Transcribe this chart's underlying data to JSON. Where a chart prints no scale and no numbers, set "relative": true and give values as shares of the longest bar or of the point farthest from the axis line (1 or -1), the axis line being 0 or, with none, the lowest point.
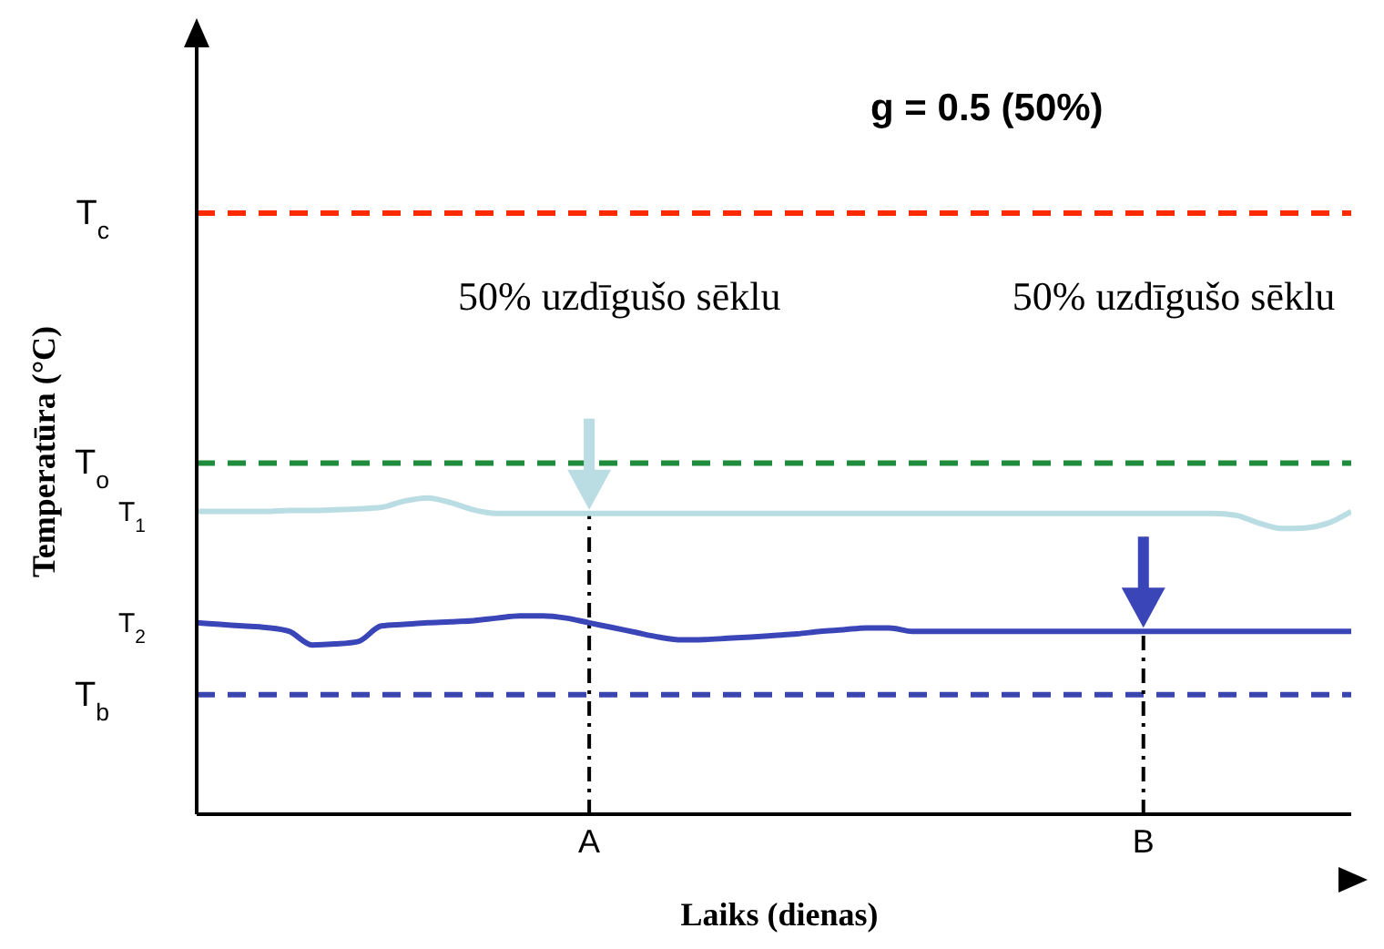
{
  "chart_data": {
    "type": "line",
    "relative": true,
    "xlabel": "Laiks (dienas)",
    "ylabel": "Temperatūra (°C)",
    "categories": [
      null,
      null,
      null,
      null,
      null,
      null,
      null,
      null,
      null,
      null,
      null,
      null,
      null,
      null,
      null,
      null,
      null,
      "A",
      null,
      null,
      null,
      null,
      null,
      null,
      null,
      null,
      null,
      null,
      null,
      null,
      null,
      null,
      null,
      null,
      null,
      null,
      null,
      null,
      null,
      null,
      null,
      "B",
      null,
      null,
      null,
      null,
      null,
      null,
      null,
      null,
      null
    ],
    "series": [
      {
        "name": "T$_{1}$",
        "color": "#b9dde3",
        "values": [
          0.957,
          0.957,
          0.957,
          0.957,
          0.96,
          0.96,
          0.962,
          0.965,
          0.97,
          0.99,
          1.0,
          0.985,
          0.962,
          0.951,
          0.951,
          0.951,
          0.951,
          0.951,
          0.951,
          0.951,
          0.951,
          0.951,
          0.951,
          0.951,
          0.951,
          0.951,
          0.951,
          0.951,
          0.951,
          0.951,
          0.951,
          0.951,
          0.951,
          0.951,
          0.951,
          0.951,
          0.951,
          0.951,
          0.951,
          0.951,
          0.951,
          0.951,
          0.951,
          0.951,
          0.951,
          0.945,
          0.92,
          0.903,
          0.905,
          0.92,
          0.957
        ]
      },
      {
        "name": "T$_{2}$",
        "color": "#3a45b8",
        "values": [
          0.605,
          0.6,
          0.595,
          0.59,
          0.578,
          0.535,
          0.538,
          0.546,
          0.595,
          0.6,
          0.605,
          0.608,
          0.612,
          0.62,
          0.627,
          0.627,
          0.62,
          0.605,
          0.59,
          0.575,
          0.56,
          0.551,
          0.552,
          0.556,
          0.56,
          0.565,
          0.57,
          0.578,
          0.583,
          0.589,
          0.589,
          0.578,
          0.578,
          0.578,
          0.578,
          0.578,
          0.578,
          0.578,
          0.578,
          0.578,
          0.578,
          0.578,
          0.578,
          0.578,
          0.578,
          0.578,
          0.578,
          0.578,
          0.578,
          0.578,
          0.578
        ]
      }
    ],
    "ref_lines": [
      {
        "axis": "y",
        "value": 1.9,
        "label": "T$_{c}$",
        "color": "#ff2a00",
        "line_style": "dashed"
      },
      {
        "axis": "y",
        "value": 1.11,
        "label": "T$_{o}$",
        "color": "#1e8c3c",
        "line_style": "dashed"
      },
      {
        "axis": "y",
        "value": 0.378,
        "label": "T$_{b}$",
        "color": "#3a45b0",
        "line_style": "dashed"
      },
      {
        "axis": "x",
        "value": "A",
        "color": "#000000",
        "line_style": "dashdot"
      },
      {
        "axis": "x",
        "value": "B",
        "color": "#000000",
        "line_style": "dashdot"
      }
    ],
    "annotations": [
      "g = 0.5 (50%)",
      "50% uzdīgušo sēklu",
      "50% uzdīgušo sēklu"
    ],
    "legend": false,
    "marker": "none",
    "line_style": "solid"
  }
}
